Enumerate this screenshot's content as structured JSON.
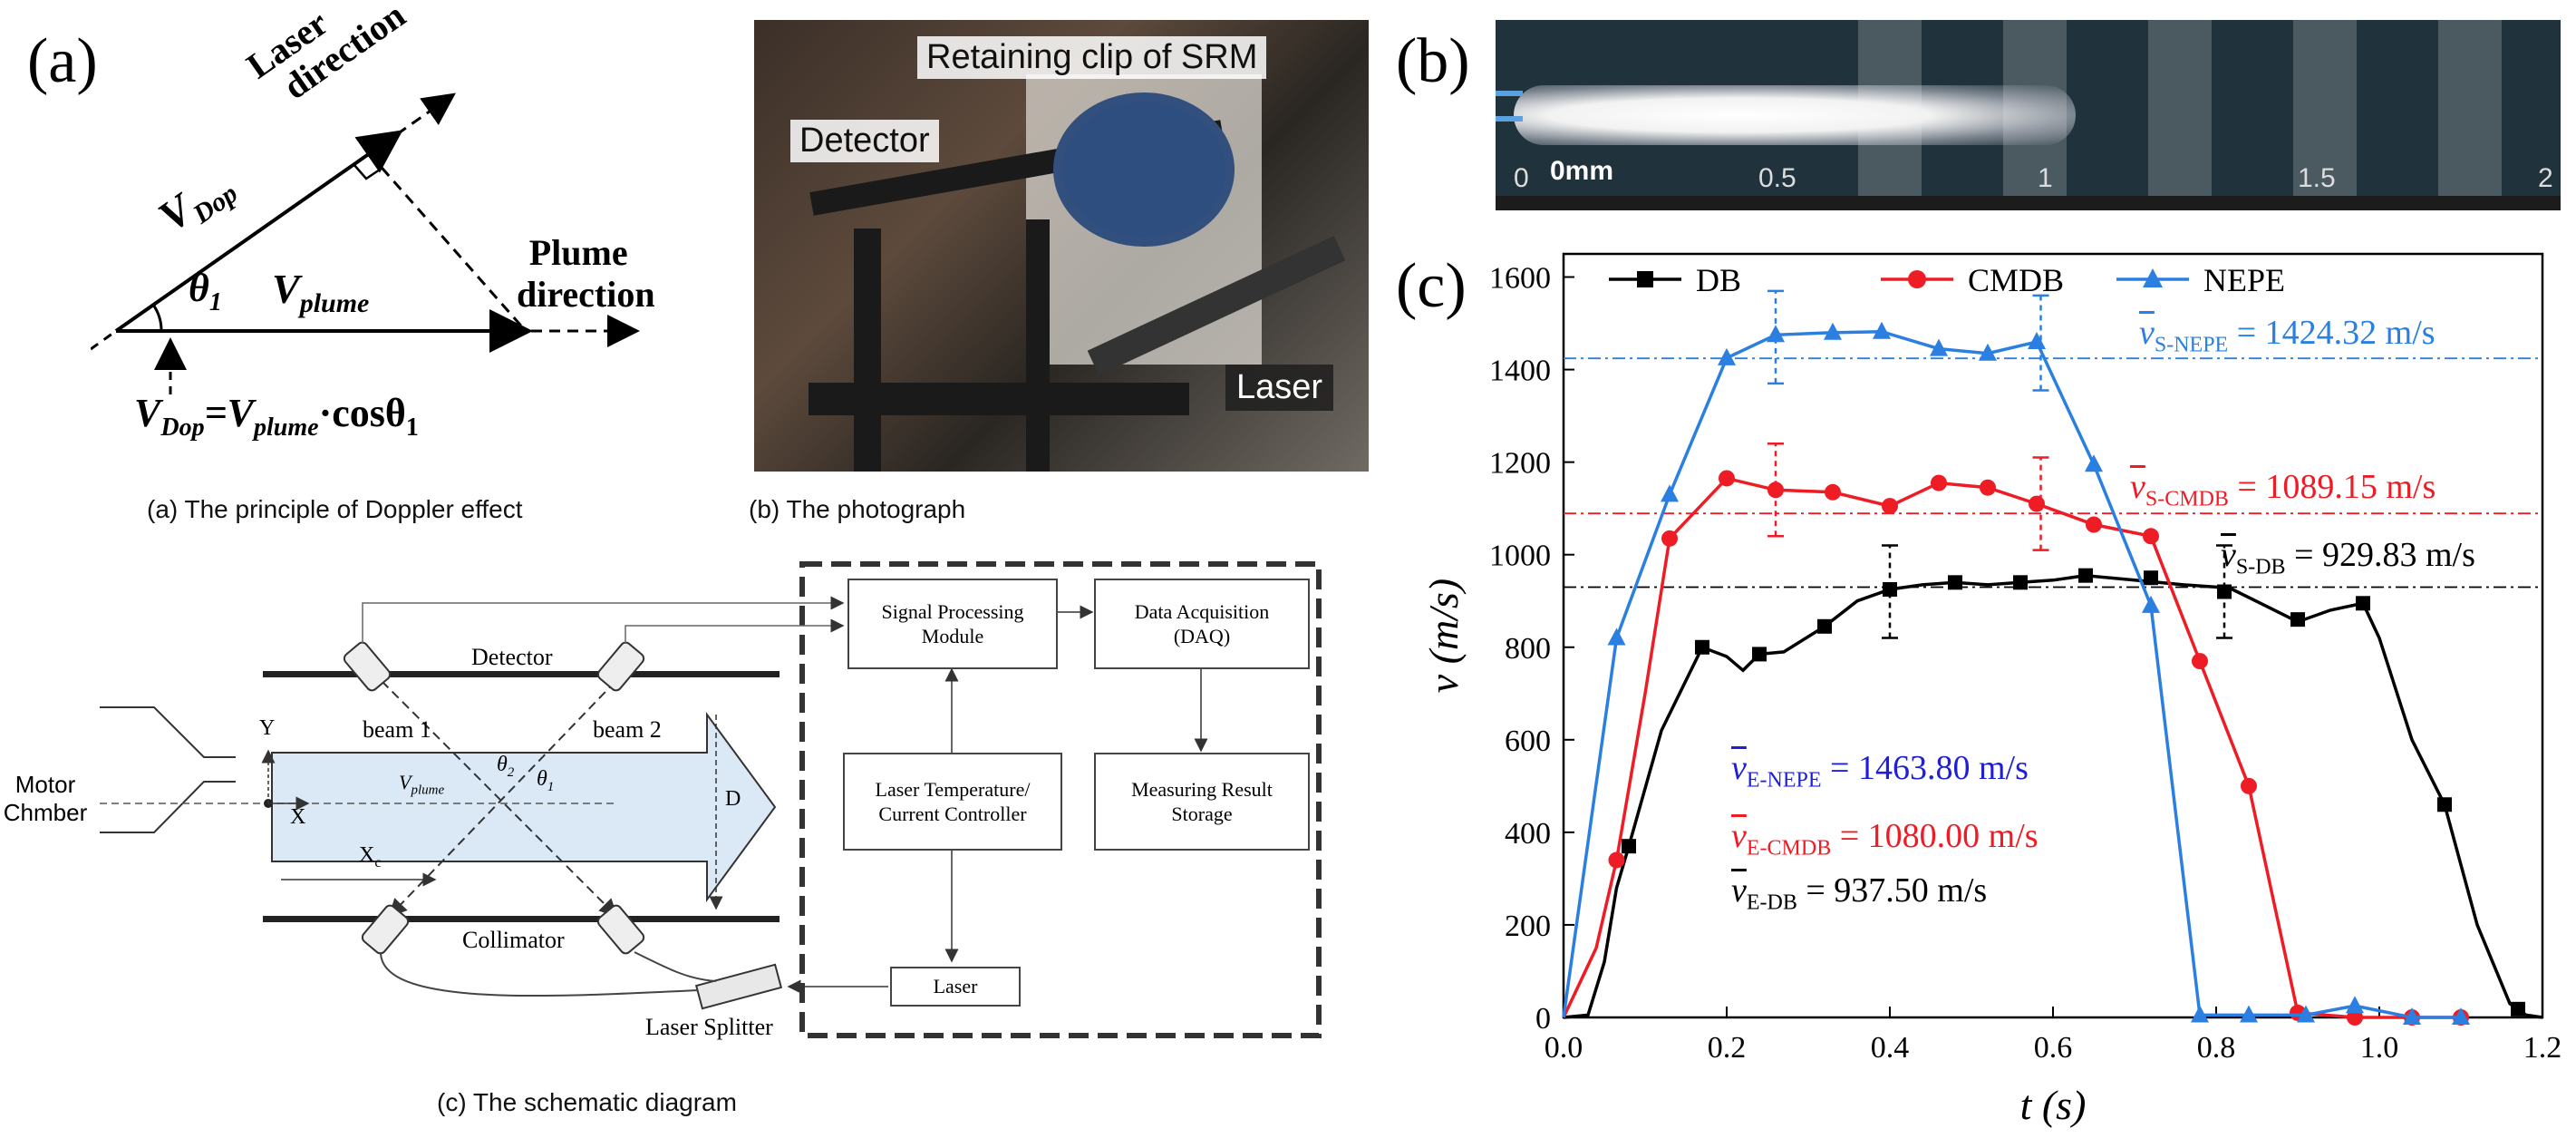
{
  "panel_a": {
    "letter": "(a)",
    "laser_direction": [
      "Laser",
      "direction"
    ],
    "v_dop": "V",
    "v_dop_sub": "Dop",
    "theta": "θ",
    "theta_sub": "1",
    "v_plume": "V",
    "v_plume_sub": "plume",
    "plume_direction": [
      "Plume",
      "direction"
    ],
    "equation_prefix": "V",
    "equation_sub1": "Dop",
    "equation_mid": "=V",
    "equation_sub2": "plume",
    "equation_end": "·cosθ",
    "equation_sub3": "1",
    "caption": "(a) The principle of Doppler effect"
  },
  "panel_photo": {
    "label_clip": "Retaining clip of SRM",
    "label_detector": "Detector",
    "label_laser": "Laser",
    "caption": "(b) The photograph"
  },
  "panel_schematic": {
    "signal_processing": [
      "Signal Processing",
      "Module"
    ],
    "daq": [
      "Data Acquisition",
      "(DAQ)"
    ],
    "laser_controller": [
      "Laser  Temperature/",
      "Current  Controller"
    ],
    "storage": [
      "Measuring Result",
      "Storage"
    ],
    "laser": "Laser",
    "detector": "Detector",
    "collimator": "Collimator",
    "beam1": "beam 1",
    "beam2": "beam 2",
    "motor_chamber": [
      "Motor",
      "Chmber"
    ],
    "y_label": "Y",
    "x_label": "X",
    "xc_label": "X",
    "xc_sub": "c",
    "d_label": "D",
    "vplume_label": "V",
    "vplume_sub": "plume",
    "theta2": "θ",
    "theta2_sub": "2",
    "theta1": "θ",
    "theta1_sub": "1",
    "laser_splitter": "Laser Splitter",
    "caption": "(c) The schematic diagram"
  },
  "panel_b": {
    "letter": "(b)",
    "ticks": [
      "0",
      "0.5",
      "1",
      "1.5",
      "2"
    ],
    "overlay_text": "0mm"
  },
  "panel_c": {
    "letter": "(c)",
    "colors": {
      "DB": "#000000",
      "CMDB": "#ee1c25",
      "NEPE": "#2a7fe0",
      "EN": "#1f1fd6"
    },
    "annotations": {
      "s_nepe_v": "v",
      "s_nepe_sub": "S-NEPE",
      "s_nepe_val": " = 1424.32 m/s",
      "s_cmdb_v": "v",
      "s_cmdb_sub": "S-CMDB",
      "s_cmdb_val": " = 1089.15 m/s",
      "s_db_v": "v",
      "s_db_sub": "S-DB",
      "s_db_val": " = 929.83 m/s",
      "e_nepe_v": "v",
      "e_nepe_sub": "E-NEPE",
      "e_nepe_val": " = 1463.80 m/s",
      "e_cmdb_v": "v",
      "e_cmdb_sub": "E-CMDB",
      "e_cmdb_val": " = 1080.00 m/s",
      "e_db_v": "v",
      "e_db_sub": "E-DB",
      "e_db_val": " = 937.50 m/s"
    }
  },
  "chart_data": {
    "type": "line",
    "title": "",
    "xlabel": "t (s)",
    "ylabel": "v (m/s)",
    "xlim": [
      0.0,
      1.2
    ],
    "ylim": [
      0,
      1650
    ],
    "xticks": [
      0.0,
      0.2,
      0.4,
      0.6,
      0.8,
      1.0,
      1.2
    ],
    "xtick_labels": [
      "0.0",
      "0.2",
      "0.4",
      "0.6",
      "0.8",
      "1.0",
      "1.2"
    ],
    "yticks": [
      0,
      200,
      400,
      600,
      800,
      1000,
      1200,
      1400,
      1600
    ],
    "legend_position": "top",
    "series": [
      {
        "name": "DB",
        "marker": "square",
        "line": [
          [
            0,
            0
          ],
          [
            0.03,
            5
          ],
          [
            0.05,
            120
          ],
          [
            0.065,
            280
          ],
          [
            0.08,
            370
          ],
          [
            0.12,
            620
          ],
          [
            0.17,
            800
          ],
          [
            0.2,
            780
          ],
          [
            0.22,
            750
          ],
          [
            0.24,
            785
          ],
          [
            0.27,
            790
          ],
          [
            0.32,
            845
          ],
          [
            0.36,
            900
          ],
          [
            0.4,
            925
          ],
          [
            0.44,
            935
          ],
          [
            0.48,
            940
          ],
          [
            0.52,
            935
          ],
          [
            0.56,
            940
          ],
          [
            0.6,
            945
          ],
          [
            0.64,
            955
          ],
          [
            0.7,
            945
          ],
          [
            0.76,
            935
          ],
          [
            0.8,
            930
          ],
          [
            0.82,
            925
          ],
          [
            0.86,
            890
          ],
          [
            0.9,
            855
          ],
          [
            0.94,
            880
          ],
          [
            0.98,
            895
          ],
          [
            1.0,
            820
          ],
          [
            1.04,
            600
          ],
          [
            1.08,
            460
          ],
          [
            1.12,
            200
          ],
          [
            1.16,
            30
          ],
          [
            1.18,
            5
          ],
          [
            1.2,
            0
          ]
        ],
        "points": [
          [
            0.08,
            370
          ],
          [
            0.17,
            800
          ],
          [
            0.24,
            785
          ],
          [
            0.32,
            845
          ],
          [
            0.4,
            925
          ],
          [
            0.48,
            940
          ],
          [
            0.56,
            940
          ],
          [
            0.64,
            955
          ],
          [
            0.72,
            950
          ],
          [
            0.81,
            920
          ],
          [
            0.9,
            860
          ],
          [
            0.98,
            895
          ],
          [
            1.08,
            460
          ],
          [
            1.17,
            18
          ]
        ]
      },
      {
        "name": "CMDB",
        "marker": "circle",
        "line": [
          [
            0,
            0
          ],
          [
            0.04,
            150
          ],
          [
            0.065,
            340
          ],
          [
            0.1,
            700
          ],
          [
            0.13,
            1035
          ],
          [
            0.2,
            1165
          ],
          [
            0.26,
            1140
          ],
          [
            0.33,
            1135
          ],
          [
            0.4,
            1105
          ],
          [
            0.46,
            1155
          ],
          [
            0.52,
            1145
          ],
          [
            0.58,
            1110
          ],
          [
            0.65,
            1065
          ],
          [
            0.72,
            1040
          ],
          [
            0.78,
            770
          ],
          [
            0.84,
            500
          ],
          [
            0.9,
            10
          ],
          [
            0.97,
            0
          ],
          [
            1.04,
            0
          ],
          [
            1.1,
            0
          ]
        ],
        "points": [
          [
            0.065,
            340
          ],
          [
            0.13,
            1035
          ],
          [
            0.2,
            1165
          ],
          [
            0.26,
            1140
          ],
          [
            0.33,
            1135
          ],
          [
            0.4,
            1105
          ],
          [
            0.46,
            1155
          ],
          [
            0.52,
            1145
          ],
          [
            0.58,
            1110
          ],
          [
            0.65,
            1065
          ],
          [
            0.72,
            1040
          ],
          [
            0.78,
            770
          ],
          [
            0.84,
            500
          ],
          [
            0.9,
            10
          ],
          [
            0.97,
            0
          ],
          [
            1.04,
            0
          ],
          [
            1.1,
            0
          ]
        ]
      },
      {
        "name": "NEPE",
        "marker": "triangle",
        "line": [
          [
            0,
            0
          ],
          [
            0.065,
            820
          ],
          [
            0.13,
            1130
          ],
          [
            0.2,
            1425
          ],
          [
            0.26,
            1475
          ],
          [
            0.33,
            1480
          ],
          [
            0.39,
            1482
          ],
          [
            0.46,
            1445
          ],
          [
            0.52,
            1435
          ],
          [
            0.58,
            1460
          ],
          [
            0.65,
            1195
          ],
          [
            0.72,
            890
          ],
          [
            0.78,
            5
          ],
          [
            0.84,
            5
          ],
          [
            0.91,
            5
          ],
          [
            0.97,
            25
          ],
          [
            1.04,
            0
          ],
          [
            1.1,
            0
          ]
        ],
        "points": [
          [
            0.065,
            820
          ],
          [
            0.13,
            1130
          ],
          [
            0.2,
            1425
          ],
          [
            0.26,
            1475
          ],
          [
            0.33,
            1480
          ],
          [
            0.39,
            1482
          ],
          [
            0.46,
            1445
          ],
          [
            0.52,
            1435
          ],
          [
            0.58,
            1460
          ],
          [
            0.65,
            1195
          ],
          [
            0.72,
            890
          ],
          [
            0.78,
            5
          ],
          [
            0.84,
            5
          ],
          [
            0.91,
            5
          ],
          [
            0.97,
            25
          ],
          [
            1.04,
            0
          ],
          [
            1.1,
            0
          ]
        ]
      }
    ],
    "reference_lines": [
      {
        "name": "S-NEPE",
        "y": 1424.32
      },
      {
        "name": "S-CMDB",
        "y": 1089.15
      },
      {
        "name": "S-DB",
        "y": 929.83
      }
    ],
    "error_bars": [
      {
        "series": "NEPE",
        "x": 0.26,
        "y": 1475,
        "low": 1370,
        "high": 1570
      },
      {
        "series": "NEPE",
        "x": 0.585,
        "y": 1460,
        "low": 1355,
        "high": 1560
      },
      {
        "series": "CMDB",
        "x": 0.26,
        "y": 1140,
        "low": 1040,
        "high": 1240
      },
      {
        "series": "CMDB",
        "x": 0.585,
        "y": 1110,
        "low": 1010,
        "high": 1210
      },
      {
        "series": "DB",
        "x": 0.4,
        "y": 925,
        "low": 820,
        "high": 1020
      },
      {
        "series": "DB",
        "x": 0.81,
        "y": 920,
        "low": 820,
        "high": 1020
      }
    ]
  }
}
